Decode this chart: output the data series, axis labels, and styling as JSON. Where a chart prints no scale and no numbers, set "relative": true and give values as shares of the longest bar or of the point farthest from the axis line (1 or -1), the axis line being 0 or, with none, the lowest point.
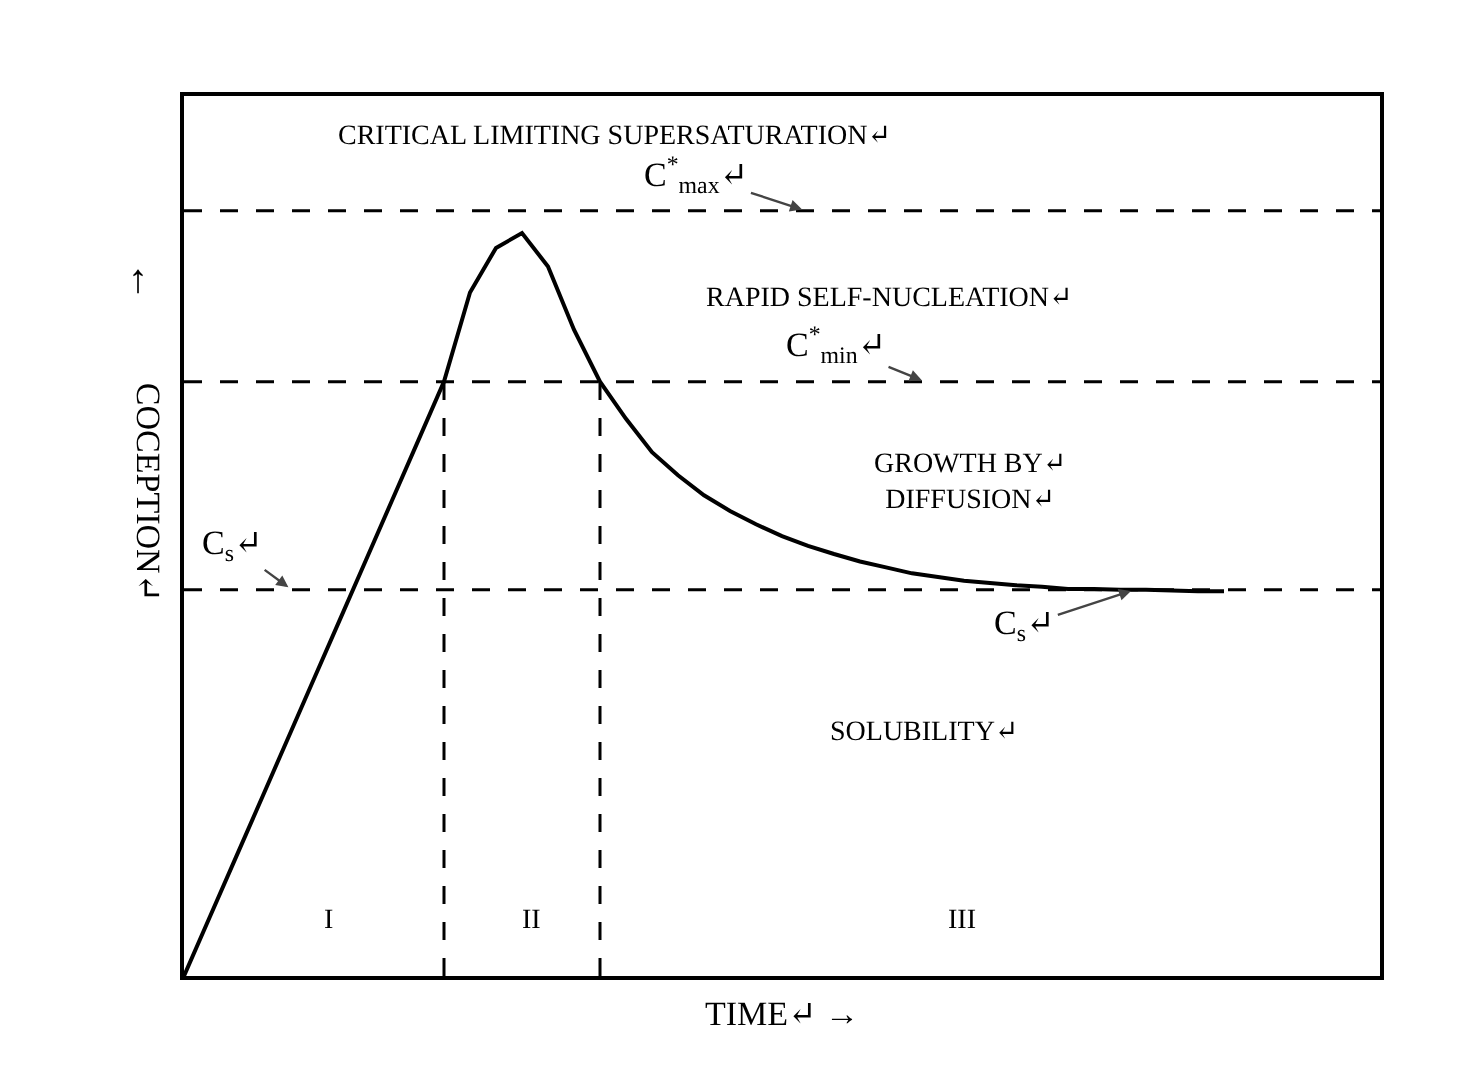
{
  "chart_data": {
    "type": "line",
    "relative": true,
    "xlabel": "TIME↵ →",
    "ylabel": "COCEPTION↵",
    "marker": "none",
    "line_style": "solid",
    "categories": [
      null,
      null,
      null,
      null,
      null,
      null,
      null,
      null,
      null,
      null,
      null,
      null,
      null,
      null,
      null,
      null,
      null,
      null,
      null,
      null,
      null,
      null,
      null,
      null,
      null,
      null,
      null,
      null,
      null,
      null,
      null,
      null,
      null,
      null,
      null,
      null,
      null,
      null,
      null,
      null,
      null,
      null,
      null,
      null,
      null,
      null,
      null
    ],
    "series": [
      {
        "color": "#000000",
        "values": [
          0,
          0.08,
          0.16,
          0.24,
          0.32,
          0.4,
          0.48,
          0.56,
          0.64,
          0.72,
          0.8,
          0.92,
          0.98,
          1,
          0.955,
          0.87,
          0.8,
          0.75,
          0.705,
          0.674,
          0.647,
          0.626,
          0.608,
          0.592,
          0.579,
          0.568,
          0.558,
          0.55,
          0.542,
          0.537,
          0.532,
          0.529,
          0.526,
          0.524,
          0.521,
          0.521,
          0.52,
          0.52,
          0.519,
          0.518,
          0.518,
          null,
          null,
          null,
          null,
          null,
          null
        ]
      }
    ],
    "ref_lines": [
      {
        "axis": "y",
        "value": 1.03,
        "label": "C$^{*}$$_{max}$↵",
        "line_style": "dashed",
        "color": "#000000"
      },
      {
        "axis": "y",
        "value": 0.8,
        "label": "C$^{*}$$_{min}$↵",
        "line_style": "dashed",
        "color": "#000000"
      },
      {
        "axis": "y",
        "value": 0.52,
        "label": "C$_{s}$↵",
        "line_style": "dashed",
        "color": "#000000"
      }
    ],
    "annotations": [
      "CRITICAL LIMITING SUPERSATURATION↵",
      "RAPID SELF-NUCLEATION↵",
      "GROWTH BY↵\nDIFFUSION↵",
      "SOLUBILITY↵",
      "I",
      "II",
      "III",
      "C$_{s}$↵",
      "↑"
    ]
  }
}
